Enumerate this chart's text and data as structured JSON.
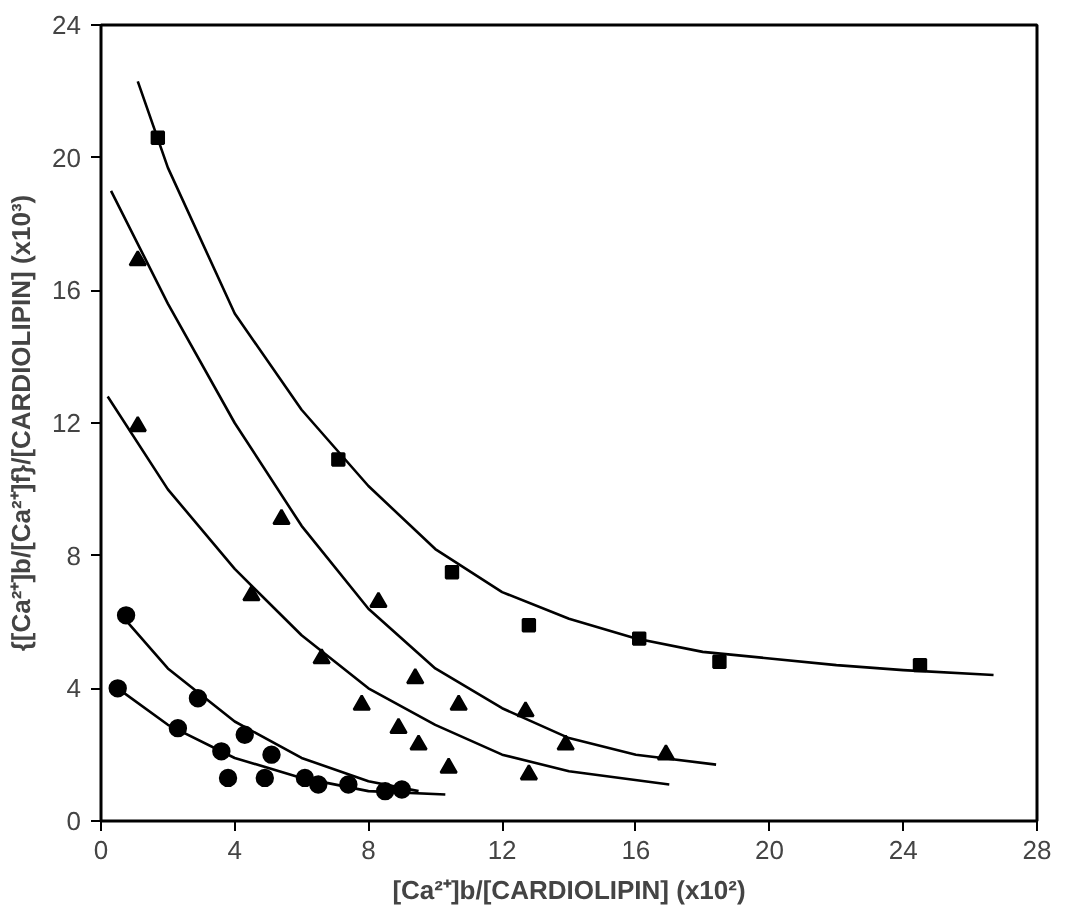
{
  "chart_data": {
    "type": "scatter",
    "xlabel": "[Ca²⁺]b/[CARDIOLIPIN] (x10²)",
    "ylabel": "{[Ca²⁺]b/[Ca²⁺]f}/[CARDIOLIPIN] (x10³)",
    "xlim": [
      0,
      28
    ],
    "ylim": [
      0,
      24
    ],
    "xticks": [
      0,
      4,
      8,
      12,
      16,
      20,
      24,
      28
    ],
    "yticks": [
      0,
      4,
      8,
      12,
      16,
      20,
      24
    ],
    "grid": false,
    "series": [
      {
        "type": "scatter",
        "marker": "square",
        "color": "#000000",
        "x": [
          1.7,
          7.1,
          10.5,
          12.8,
          16.1,
          18.5,
          24.5
        ],
        "values": [
          20.6,
          10.9,
          7.5,
          5.9,
          5.5,
          4.8,
          4.7
        ]
      },
      {
        "type": "scatter",
        "marker": "triangle",
        "color": "#000000",
        "x": [
          1.1,
          5.4,
          8.3,
          9.4,
          10.7,
          12.7,
          13.9,
          16.9
        ],
        "values": [
          16.9,
          9.1,
          6.6,
          4.3,
          3.5,
          3.3,
          2.3,
          2.0
        ]
      },
      {
        "type": "scatter",
        "marker": "triangle",
        "color": "#000000",
        "x": [
          1.1,
          4.5,
          6.6,
          7.8,
          8.9,
          9.5,
          10.4,
          12.8
        ],
        "values": [
          11.9,
          6.8,
          4.9,
          3.5,
          2.8,
          2.3,
          1.6,
          1.4
        ]
      },
      {
        "type": "scatter",
        "marker": "circle",
        "color": "#000000",
        "x": [
          0.75,
          2.9,
          4.3,
          5.1,
          6.1,
          9.0
        ],
        "values": [
          6.2,
          3.7,
          2.6,
          2.0,
          1.3,
          0.95
        ]
      },
      {
        "type": "scatter",
        "marker": "circle",
        "color": "#000000",
        "x": [
          0.5,
          2.3,
          3.6,
          3.8,
          4.9,
          6.5,
          7.4,
          8.5
        ],
        "values": [
          4.0,
          2.8,
          2.1,
          1.3,
          1.3,
          1.1,
          1.1,
          0.9
        ]
      },
      {
        "type": "line",
        "color": "#000000",
        "x": [
          1.1,
          2,
          4,
          6,
          8,
          10,
          12,
          14,
          16,
          18,
          20,
          22,
          24,
          26.7
        ],
        "values": [
          22.3,
          19.7,
          15.3,
          12.4,
          10.1,
          8.2,
          6.9,
          6.1,
          5.5,
          5.1,
          4.9,
          4.7,
          4.55,
          4.4
        ]
      },
      {
        "type": "line",
        "color": "#000000",
        "x": [
          0.3,
          2,
          4,
          6,
          8,
          10,
          12,
          14,
          16,
          18.4
        ],
        "values": [
          19.0,
          15.6,
          12.0,
          8.9,
          6.4,
          4.6,
          3.4,
          2.5,
          2.0,
          1.7
        ]
      },
      {
        "type": "line",
        "color": "#000000",
        "x": [
          0.2,
          2,
          4,
          6,
          8,
          10,
          12,
          14,
          17
        ],
        "values": [
          12.8,
          10.0,
          7.6,
          5.6,
          4.0,
          2.9,
          2.0,
          1.5,
          1.1
        ]
      },
      {
        "type": "line",
        "color": "#000000",
        "x": [
          0.7,
          2,
          4,
          6,
          8,
          9.5
        ],
        "values": [
          6.1,
          4.6,
          3.0,
          1.9,
          1.2,
          0.9
        ]
      },
      {
        "type": "line",
        "color": "#000000",
        "x": [
          0.5,
          2,
          4,
          6,
          8,
          10.3
        ],
        "values": [
          4.0,
          2.9,
          1.9,
          1.3,
          0.9,
          0.8
        ]
      }
    ]
  }
}
